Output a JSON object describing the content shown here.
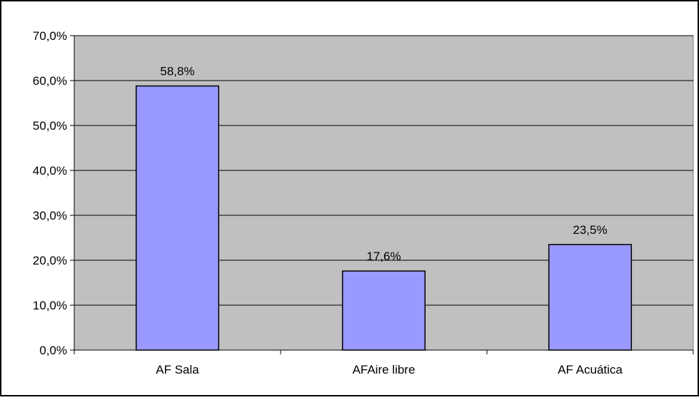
{
  "chart_data": {
    "type": "bar",
    "title": "",
    "xlabel": "",
    "ylabel": "",
    "categories": [
      "AF Sala",
      "AFAire libre",
      "AF Acuática"
    ],
    "values": [
      58.8,
      17.6,
      23.5
    ],
    "data_labels": [
      "58,8%",
      "17,6%",
      "23,5%"
    ],
    "ylim": [
      0,
      70
    ],
    "y_ticks": [
      0,
      10,
      20,
      30,
      40,
      50,
      60,
      70
    ],
    "y_tick_labels": [
      "0,0%",
      "10,0%",
      "20,0%",
      "30,0%",
      "40,0%",
      "50,0%",
      "60,0%",
      "70,0%"
    ],
    "grid": true,
    "legend": "none",
    "colors": {
      "plot_background": "#c0c0c0",
      "bar_fill": "#9999ff",
      "bar_stroke": "#000000",
      "gridline": "#000000",
      "frame": "#000000"
    }
  }
}
